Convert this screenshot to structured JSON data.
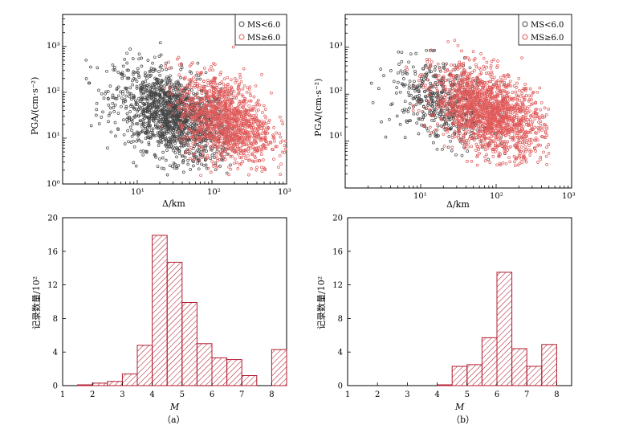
{
  "figure": {
    "caption_a": "（a）",
    "caption_b": "（b）"
  },
  "legend": {
    "series1": "MS<6.0",
    "series2": "MS≥6.0"
  },
  "colors": {
    "small_mag": "#444444",
    "large_mag": "#e05a5a",
    "hist_edge": "#b01c2e",
    "hist_hatch": "#b01c2e"
  },
  "chart_data": [
    {
      "id": "scatter-a",
      "type": "scatter",
      "xlabel": "Δ/km",
      "ylabel": "PGA/(cm·s⁻²)",
      "xscale": "log",
      "yscale": "log",
      "xlim": [
        1,
        1000
      ],
      "ylim": [
        1,
        5000
      ],
      "xtick_labels": [
        "10¹",
        "10²",
        "10³"
      ],
      "ytick_labels": [
        "10⁰",
        "10¹",
        "10²",
        "10³"
      ],
      "legend_position": "top-right",
      "series": [
        {
          "name": "MS<6.0",
          "center_distance_km": 30,
          "center_pga": 30,
          "spread_distance_km": [
            1.5,
            200
          ],
          "spread_pga": [
            1.5,
            1500
          ]
        },
        {
          "name": "MS≥6.0",
          "center_distance_km": 150,
          "center_pga": 25,
          "spread_distance_km": [
            20,
            1000
          ],
          "spread_pga": [
            1.5,
            1500
          ]
        }
      ]
    },
    {
      "id": "scatter-b",
      "type": "scatter",
      "xlabel": "Δ/km",
      "ylabel": "PGA/(cm·s⁻²)",
      "xscale": "log",
      "yscale": "log",
      "xlim": [
        1,
        1000
      ],
      "ylim": [
        1,
        5000
      ],
      "xtick_labels": [
        "10¹",
        "10²",
        "10³"
      ],
      "ytick_labels": [
        "10¹",
        "10²",
        "10³"
      ],
      "legend_position": "top-right",
      "series": [
        {
          "name": "MS<6.0",
          "center_distance_km": 20,
          "center_pga": 60,
          "spread_distance_km": [
            2,
            150
          ],
          "spread_pga": [
            3,
            1500
          ]
        },
        {
          "name": "MS≥6.0",
          "center_distance_km": 80,
          "center_pga": 40,
          "spread_distance_km": [
            5,
            500
          ],
          "spread_pga": [
            3,
            1800
          ]
        }
      ]
    },
    {
      "id": "hist-a",
      "type": "bar",
      "xlabel": "M",
      "ylabel": "记录数量/10²",
      "xlim": [
        1,
        8.5
      ],
      "ylim": [
        0,
        20
      ],
      "xticks": [
        1,
        2,
        3,
        4,
        5,
        6,
        7,
        8
      ],
      "yticks": [
        0,
        4,
        8,
        12,
        16,
        20
      ],
      "bin_width": 0.5,
      "bin_starts": [
        1.5,
        2.0,
        2.5,
        3.0,
        3.5,
        4.0,
        4.5,
        5.0,
        5.5,
        6.0,
        6.5,
        7.0,
        8.0
      ],
      "values": [
        0.1,
        0.3,
        0.5,
        1.4,
        4.8,
        17.9,
        14.7,
        9.9,
        5.0,
        3.3,
        3.1,
        1.2,
        4.3
      ]
    },
    {
      "id": "hist-b",
      "type": "bar",
      "xlabel": "M",
      "ylabel": "记录数量/10²",
      "xlim": [
        1,
        8.5
      ],
      "ylim": [
        0,
        20
      ],
      "xticks": [
        1,
        2,
        3,
        4,
        5,
        6,
        7,
        8
      ],
      "yticks": [
        0,
        4,
        8,
        12,
        16,
        20
      ],
      "bin_width": 0.5,
      "bin_starts": [
        4.0,
        4.5,
        5.0,
        5.5,
        6.0,
        6.5,
        7.0,
        7.5
      ],
      "values": [
        0.1,
        2.3,
        2.5,
        5.7,
        13.5,
        4.4,
        2.3,
        4.9
      ]
    }
  ]
}
